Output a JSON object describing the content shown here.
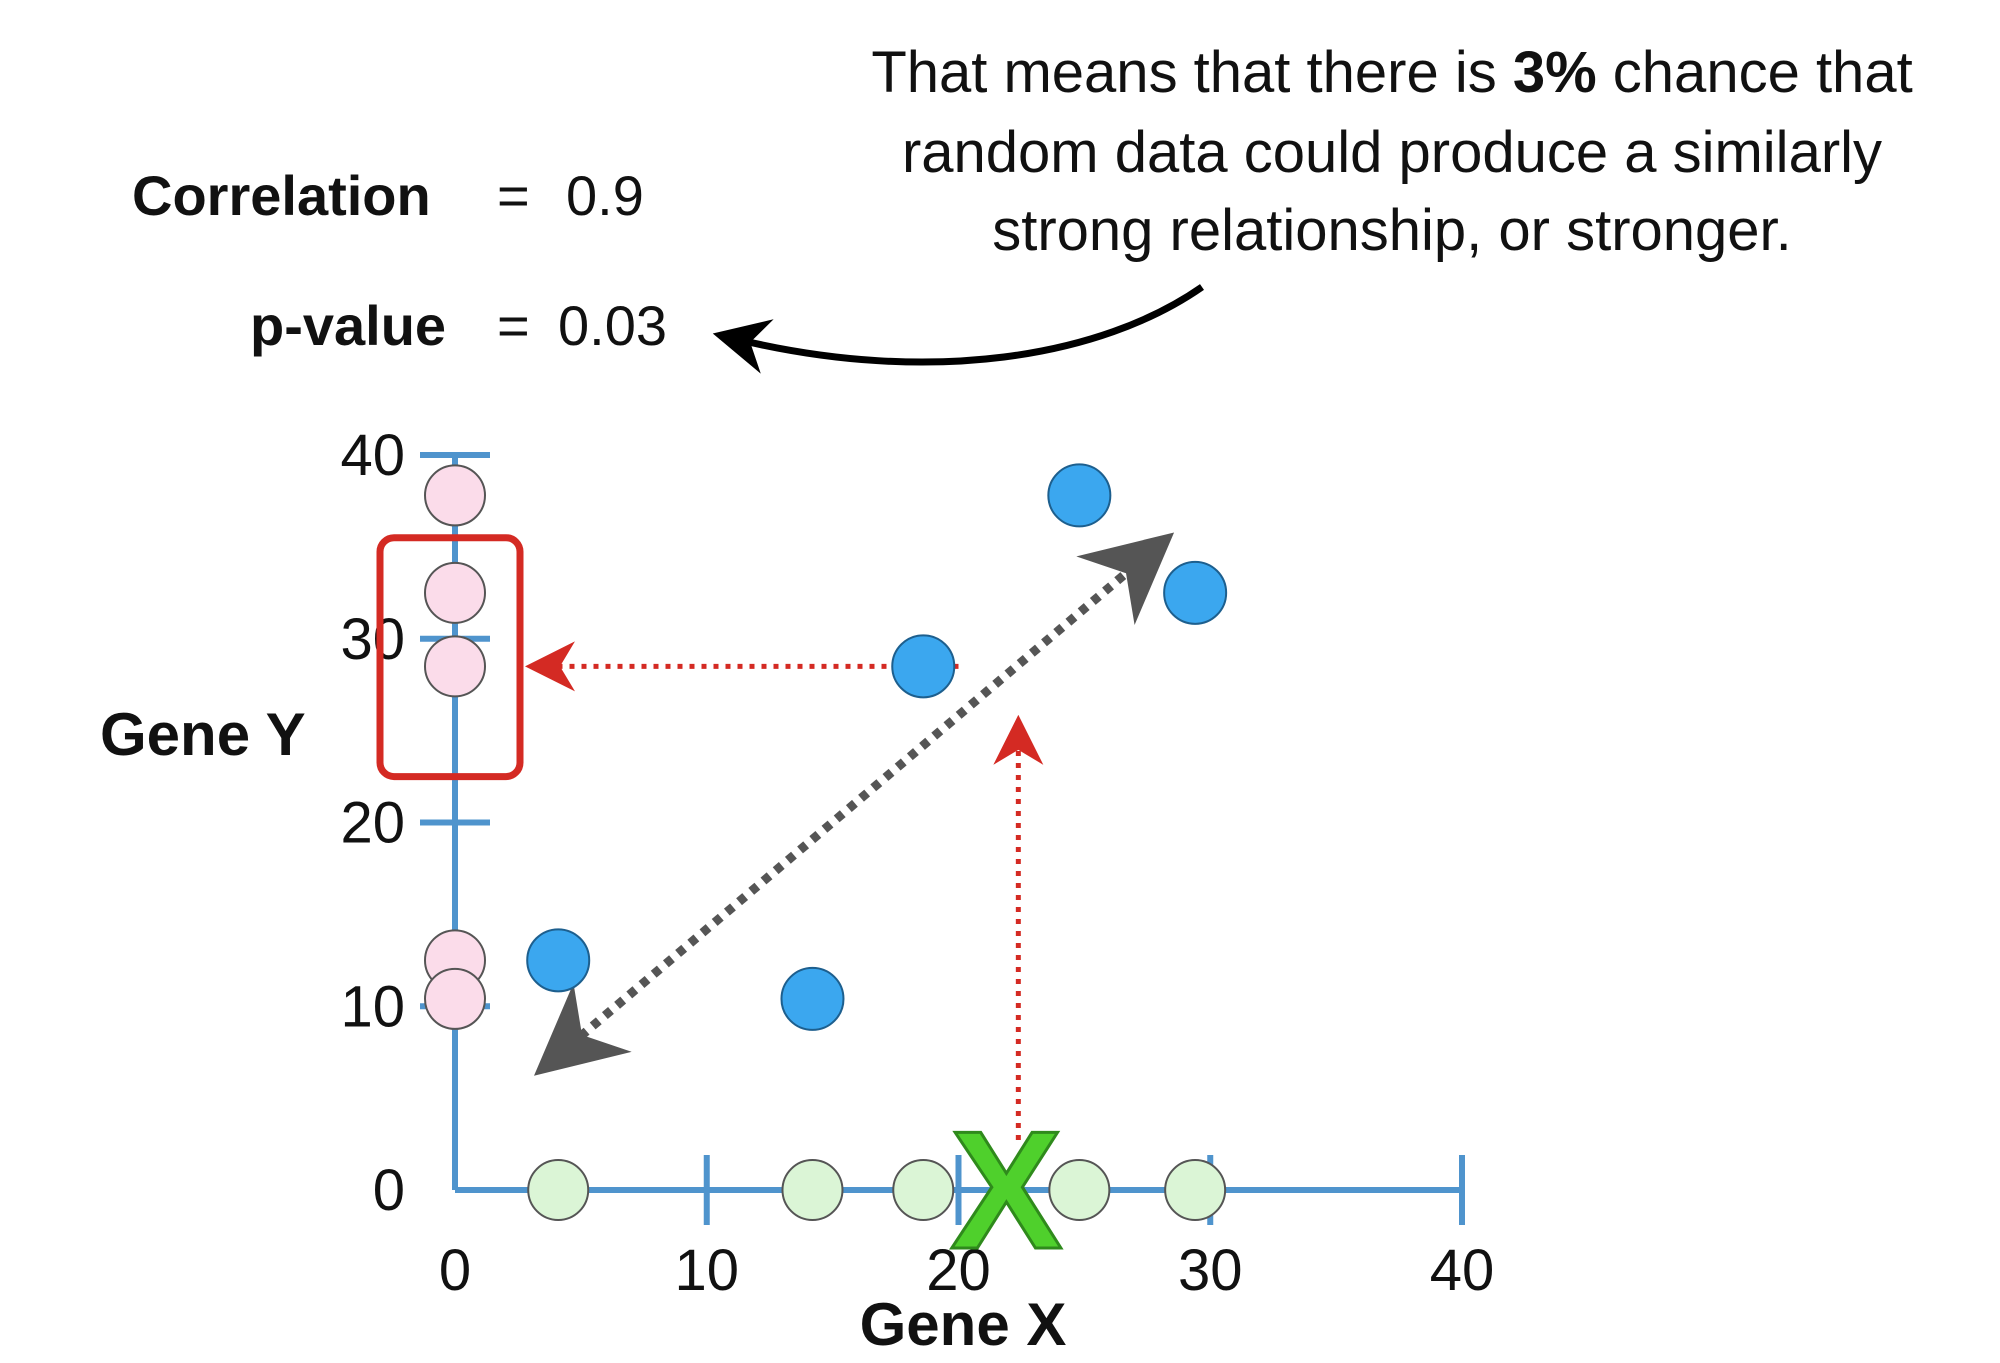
{
  "annotation": {
    "lines": [
      [
        {
          "t": "That means that there is ",
          "b": false
        },
        {
          "t": "3%",
          "b": true
        },
        {
          "t": " chance that",
          "b": false
        }
      ],
      [
        {
          "t": "random data could produce a similarly",
          "b": false
        }
      ],
      [
        {
          "t": "strong relationship, or stronger.",
          "b": false
        }
      ]
    ]
  },
  "stats": {
    "correlation_label": "Correlation",
    "correlation_eq": "=",
    "correlation_value": "0.9",
    "pvalue_label": "p-value",
    "pvalue_eq": "=",
    "pvalue_value": "0.03"
  },
  "colors": {
    "axis": "#4f94cd",
    "point_fill": "#3ba7ef",
    "point_stroke": "#1d5f8e",
    "x_proj_fill": "#dbf5d6",
    "y_proj_fill": "#fbdcea",
    "proj_stroke": "#555555",
    "highlight": "#d42a23",
    "trend": "#555555",
    "x_mark": "#4fd02c",
    "x_mark_stroke": "#2f8a1c"
  },
  "chart_data": {
    "type": "scatter",
    "xlabel": "Gene X",
    "ylabel": "Gene Y",
    "xlim": [
      0,
      40
    ],
    "ylim": [
      0,
      40
    ],
    "x_ticks": [
      0,
      10,
      20,
      30,
      40
    ],
    "y_ticks": [
      0,
      10,
      20,
      30,
      40
    ],
    "points": [
      {
        "x": 4.1,
        "y": 12.5
      },
      {
        "x": 14.2,
        "y": 10.4
      },
      {
        "x": 18.6,
        "y": 28.5
      },
      {
        "x": 24.8,
        "y": 37.8
      },
      {
        "x": 29.4,
        "y": 32.5
      }
    ],
    "x_projection": [
      4.1,
      14.2,
      18.6,
      24.8,
      29.4
    ],
    "y_projection": [
      37.8,
      32.5,
      28.5,
      12.5,
      10.4
    ],
    "highlight_y_range": [
      22.5,
      35.5
    ],
    "new_x_marker": {
      "label": "X",
      "x": 21.9
    }
  }
}
